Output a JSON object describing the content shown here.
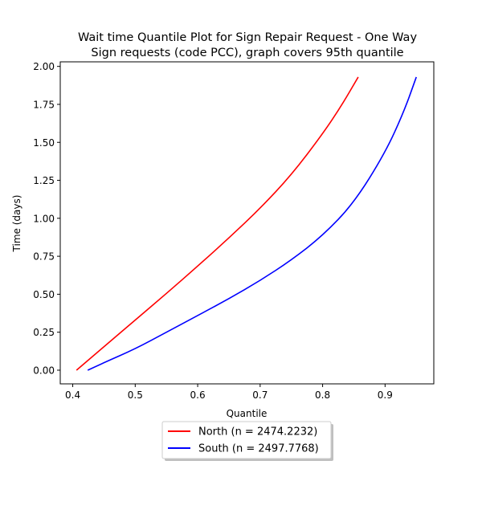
{
  "chart_data": {
    "type": "line",
    "title_lines": [
      "Wait time Quantile Plot for Sign Repair Request - One Way",
      "Sign  requests (code PCC), graph covers 95th quantile"
    ],
    "xlabel": "Quantile",
    "ylabel": "Time (days)",
    "xlim": [
      0.38,
      0.978
    ],
    "ylim": [
      -0.09,
      2.03
    ],
    "xticks": [
      0.4,
      0.5,
      0.6,
      0.7,
      0.8,
      0.9
    ],
    "xtick_labels": [
      "0.4",
      "0.5",
      "0.6",
      "0.7",
      "0.8",
      "0.9"
    ],
    "yticks": [
      0.0,
      0.25,
      0.5,
      0.75,
      1.0,
      1.25,
      1.5,
      1.75,
      2.0
    ],
    "ytick_labels": [
      "0.00",
      "0.25",
      "0.50",
      "0.75",
      "1.00",
      "1.25",
      "1.50",
      "1.75",
      "2.00"
    ],
    "grid": false,
    "legend_position": "below-center",
    "series": [
      {
        "name": "North (n = 2474.2232)",
        "color": "#ff0000",
        "x": [
          0.406,
          0.45,
          0.5,
          0.55,
          0.6,
          0.65,
          0.7,
          0.75,
          0.8,
          0.83,
          0.857
        ],
        "y": [
          0.0,
          0.155,
          0.33,
          0.505,
          0.685,
          0.87,
          1.065,
          1.285,
          1.555,
          1.74,
          1.93
        ]
      },
      {
        "name": "South (n = 2497.7768)",
        "color": "#0000ff",
        "x": [
          0.424,
          0.45,
          0.5,
          0.55,
          0.6,
          0.65,
          0.7,
          0.75,
          0.8,
          0.85,
          0.9,
          0.93,
          0.95
        ],
        "y": [
          0.0,
          0.05,
          0.14,
          0.25,
          0.36,
          0.47,
          0.59,
          0.725,
          0.885,
          1.1,
          1.43,
          1.7,
          1.93
        ]
      }
    ]
  }
}
